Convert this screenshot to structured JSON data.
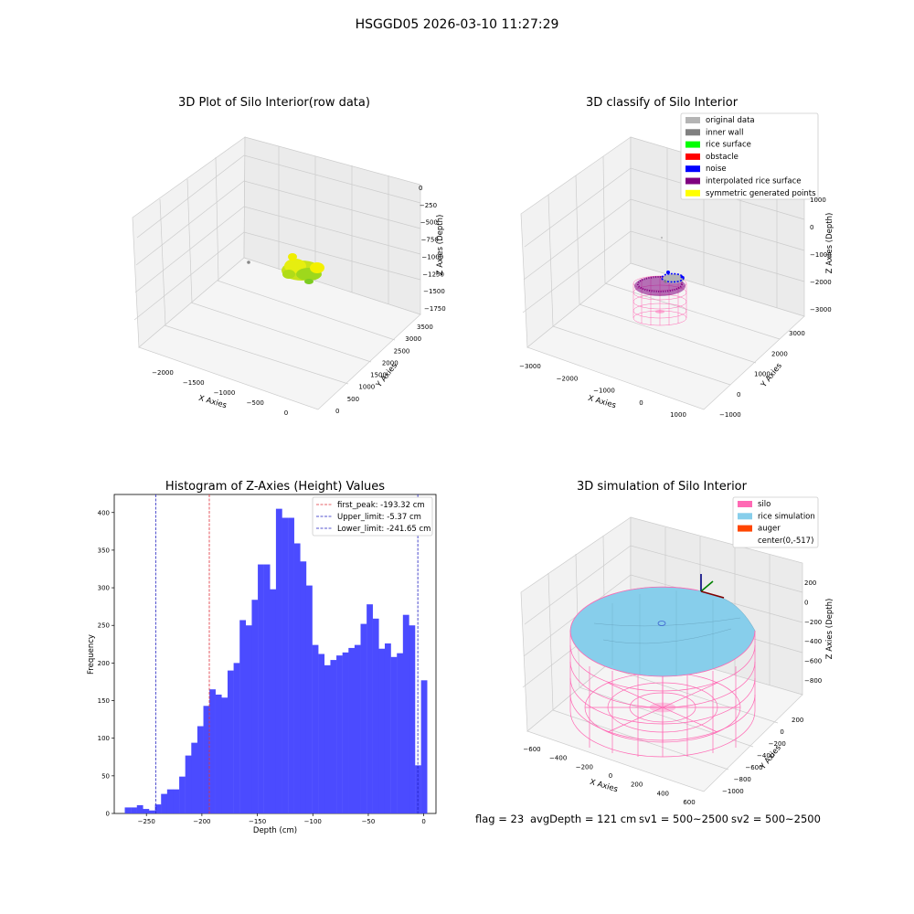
{
  "figure_title": "HSGGD05 2026-03-10 11:27:29",
  "footer": {
    "flag": "flag = 23",
    "avg_depth": "avgDepth = 121 cm",
    "sv1": "sv1 = 500~2500",
    "sv2": "sv2 = 500~2500"
  },
  "colors": {
    "histogram_bar": "#4b4bff",
    "first_peak_line": "#e0303a",
    "limit_lines": "#1f1fc0",
    "silo": "#ff69b4",
    "rice_simulation": "#87ceeb",
    "auger": "#ff4500",
    "original_data": "#b4b4b4",
    "inner_wall": "#808080",
    "rice_surface": "#00ff00",
    "obstacle": "#ff0000",
    "noise": "#0000ff",
    "interpolated_rice_surface": "#800080",
    "symmetric_generated_points": "#ffff00"
  },
  "chart_data": [
    {
      "type": "scatter",
      "subtype": "3d",
      "title": "3D Plot of Silo Interior(row data)",
      "xlabel": "X Axies",
      "ylabel": "Y Axies",
      "zlabel": "Z Axies (Depth)",
      "x_ticks": [
        "−2000",
        "−1500",
        "−1000",
        "−500",
        "0"
      ],
      "y_ticks": [
        "0",
        "500",
        "1000",
        "1500",
        "2000",
        "2500",
        "3000",
        "3500"
      ],
      "z_ticks": [
        "0",
        "−250",
        "−500",
        "−750",
        "−1000",
        "−1250",
        "−1500",
        "−1750"
      ],
      "series": [
        {
          "description": "point cloud colored by depth (green to yellow)"
        }
      ]
    },
    {
      "type": "scatter",
      "subtype": "3d",
      "title": "3D classify of Silo Interior",
      "xlabel": "X Axies",
      "ylabel": "Y Axies",
      "zlabel": "Z Axies (Depth)",
      "x_ticks": [
        "−3000",
        "−2000",
        "−1000",
        "0",
        "1000"
      ],
      "y_ticks": [
        "−1000",
        "0",
        "1000",
        "2000",
        "3000"
      ],
      "z_ticks": [
        "1000",
        "0",
        "−1000",
        "−2000",
        "−3000"
      ],
      "legend": {
        "position": "top-right",
        "entries": [
          {
            "label": "original data",
            "color": "#b4b4b4"
          },
          {
            "label": "inner wall",
            "color": "#808080"
          },
          {
            "label": "rice surface",
            "color": "#00ff00"
          },
          {
            "label": "obstacle",
            "color": "#ff0000"
          },
          {
            "label": "noise",
            "color": "#0000ff"
          },
          {
            "label": "interpolated rice surface",
            "color": "#800080"
          },
          {
            "label": "symmetric generated points",
            "color": "#ffff00"
          }
        ]
      }
    },
    {
      "type": "bar",
      "subtype": "histogram",
      "title": "Histogram of Z-Axies (Height) Values",
      "xlabel": "Depth (cm)",
      "ylabel": "Frequency",
      "xlim": [
        -279,
        11
      ],
      "ylim": [
        0,
        424
      ],
      "x_ticks": [
        -250,
        -200,
        -150,
        -100,
        -50,
        0
      ],
      "y_ticks": [
        0,
        50,
        100,
        150,
        200,
        250,
        300,
        350,
        400
      ],
      "bin_start": -269.5,
      "bin_width": 5.45,
      "values": [
        8,
        8,
        11,
        6,
        4,
        12,
        26,
        32,
        32,
        49,
        77,
        94,
        116,
        143,
        165,
        158,
        154,
        190,
        200,
        257,
        250,
        284,
        331,
        331,
        298,
        405,
        393,
        393,
        359,
        335,
        303,
        224,
        212,
        197,
        204,
        210,
        214,
        220,
        224,
        252,
        278,
        259,
        219,
        226,
        208,
        213,
        264,
        250,
        64,
        177
      ],
      "vlines": [
        {
          "label": "first_peak: -193.32 cm",
          "x": -193.32,
          "color": "#e0303a"
        },
        {
          "label": "Upper_limit: -5.37 cm",
          "x": -5.37,
          "color": "#1f1fc0"
        },
        {
          "label": "Lower_limit: -241.65 cm",
          "x": -241.65,
          "color": "#1f1fc0"
        }
      ],
      "legend": {
        "position": "top-right"
      }
    },
    {
      "type": "area",
      "subtype": "3d-surface",
      "title": "3D simulation of Silo Interior",
      "xlabel": "X Axies",
      "ylabel": "Y Axies",
      "zlabel": "Z Axies (Depth)",
      "x_ticks": [
        "−600",
        "−400",
        "−200",
        "0",
        "200",
        "400",
        "600"
      ],
      "y_ticks": [
        "200",
        "0",
        "−200",
        "−400",
        "−600",
        "−800",
        "−1000"
      ],
      "z_ticks": [
        "200",
        "0",
        "−200",
        "−400",
        "−600",
        "−800"
      ],
      "legend": {
        "position": "top-right",
        "entries": [
          {
            "label": "silo",
            "color": "#ff69b4"
          },
          {
            "label": "rice simulation",
            "color": "#87ceeb"
          },
          {
            "label": "auger",
            "color": "#ff4500"
          },
          {
            "label": "center(0,-517)",
            "color": ""
          }
        ]
      }
    }
  ]
}
